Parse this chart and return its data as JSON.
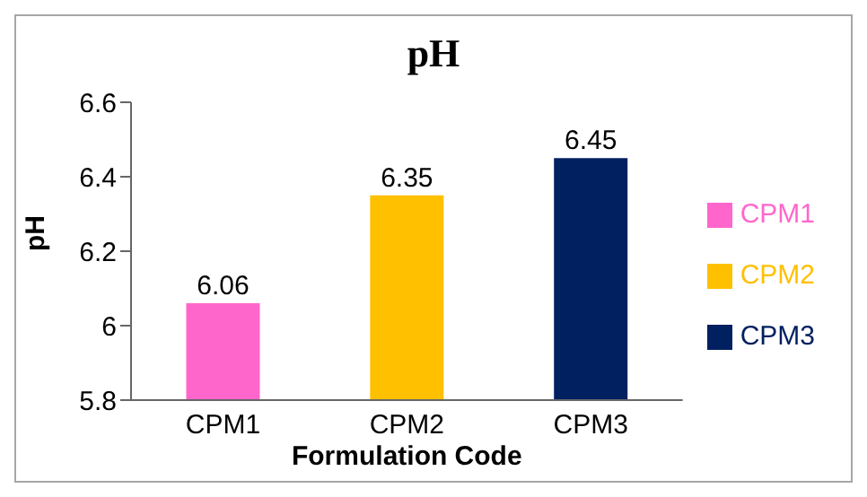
{
  "chart_data": {
    "type": "bar",
    "title": "pH",
    "xlabel": "Formulation Code",
    "ylabel": "pH",
    "categories": [
      "CPM1",
      "CPM2",
      "CPM3"
    ],
    "series": [
      {
        "name": "CPM1",
        "color": "#ff66cc",
        "values": [
          6.06,
          null,
          null
        ]
      },
      {
        "name": "CPM2",
        "color": "#ffc000",
        "values": [
          null,
          6.35,
          null
        ]
      },
      {
        "name": "CPM3",
        "color": "#002060",
        "values": [
          null,
          null,
          6.45
        ]
      }
    ],
    "stacked": true,
    "ylim": [
      5.8,
      6.6
    ],
    "yticks": [
      5.8,
      6,
      6.2,
      6.4,
      6.6
    ],
    "data_labels": true,
    "legend": "right",
    "grid": false
  }
}
